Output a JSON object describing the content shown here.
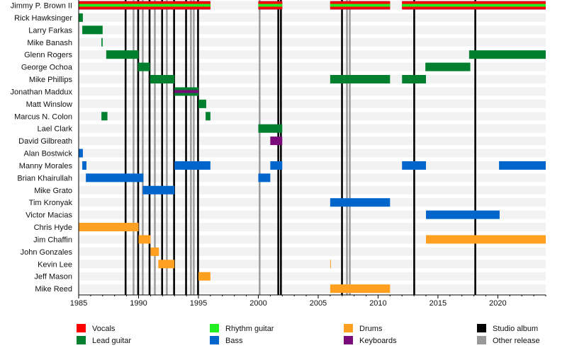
{
  "chart_data": {
    "type": "timeline",
    "xlim": [
      1985,
      2024
    ],
    "x_ticks": [
      1985,
      1990,
      1995,
      2000,
      2005,
      2010,
      2015,
      2020
    ],
    "colors": {
      "Vocals": "#ff0000",
      "Rhythm guitar": "#22ee22",
      "Drums": "#ffa020",
      "Studio album": "#000000",
      "Lead guitar": "#00802f",
      "Bass": "#0066cc",
      "Keyboards": "#7a0a7a",
      "Other release": "#999999"
    },
    "legend": [
      {
        "label": "Vocals",
        "key": "Vocals"
      },
      {
        "label": "Lead guitar",
        "key": "Lead guitar"
      },
      {
        "label": "Rhythm guitar",
        "key": "Rhythm guitar"
      },
      {
        "label": "Bass",
        "key": "Bass"
      },
      {
        "label": "Drums",
        "key": "Drums"
      },
      {
        "label": "Keyboards",
        "key": "Keyboards"
      },
      {
        "label": "Studio album",
        "key": "Studio album"
      },
      {
        "label": "Other release",
        "key": "Other release"
      }
    ],
    "studio_albums": [
      1988.9,
      1989.95,
      1990.9,
      1991.95,
      1992.95,
      1993.95,
      1994.95,
      2001.65,
      2001.87,
      2006.97,
      2013.0,
      2018.1
    ],
    "other_releases": [
      1989.57,
      1990.34,
      1991.35,
      1992.35,
      1994.36,
      1994.6,
      2000.1,
      2007.39,
      2007.63
    ],
    "members": [
      {
        "name": "Jimmy P. Brown II",
        "periods": [
          {
            "role": "Vocals",
            "second": "Rhythm guitar",
            "start": 1985,
            "end": 1996
          },
          {
            "role": "Vocals",
            "second": "Rhythm guitar",
            "start": 2000,
            "end": 2002
          },
          {
            "role": "Vocals",
            "second": "Rhythm guitar",
            "start": 2006,
            "end": 2011
          },
          {
            "role": "Vocals",
            "second": "Rhythm guitar",
            "start": 2012,
            "end": 2024
          }
        ]
      },
      {
        "name": "Rick Hawksinger",
        "periods": [
          {
            "role": "Lead guitar",
            "start": 1985,
            "end": 1985.35
          }
        ]
      },
      {
        "name": "Larry Farkas",
        "periods": [
          {
            "role": "Lead guitar",
            "start": 1985.3,
            "end": 1987
          }
        ]
      },
      {
        "name": "Mike Banash",
        "periods": [
          {
            "role": "Lead guitar",
            "start": 1986.9,
            "end": 1987
          }
        ]
      },
      {
        "name": "Glenn Rogers",
        "periods": [
          {
            "role": "Lead guitar",
            "start": 1987.3,
            "end": 1990
          },
          {
            "role": "Lead guitar",
            "start": 2017.6,
            "end": 2024
          }
        ]
      },
      {
        "name": "George Ochoa",
        "periods": [
          {
            "role": "Lead guitar",
            "start": 1989.95,
            "end": 1990.95
          },
          {
            "role": "Lead guitar",
            "start": 2013.95,
            "end": 2017.7
          }
        ]
      },
      {
        "name": "Mike Phillips",
        "periods": [
          {
            "role": "Lead guitar",
            "start": 1990.95,
            "end": 1993
          },
          {
            "role": "Lead guitar",
            "start": 2006,
            "end": 2011
          },
          {
            "role": "Lead guitar",
            "start": 2012,
            "end": 2014
          }
        ]
      },
      {
        "name": "Jonathan Maddux",
        "periods": [
          {
            "role": "Lead guitar",
            "second": "Keyboards",
            "start": 1993,
            "end": 1995
          }
        ]
      },
      {
        "name": "Matt Winslow",
        "periods": [
          {
            "role": "Lead guitar",
            "start": 1995,
            "end": 1995.65
          }
        ]
      },
      {
        "name": "Marcus N. Colon",
        "periods": [
          {
            "role": "Lead guitar",
            "start": 1986.9,
            "end": 1987.4
          },
          {
            "role": "Lead guitar",
            "start": 1995.6,
            "end": 1996
          }
        ]
      },
      {
        "name": "Lael Clark",
        "periods": [
          {
            "role": "Lead guitar",
            "start": 2000,
            "end": 2002
          }
        ]
      },
      {
        "name": "David Gilbreath",
        "periods": [
          {
            "role": "Keyboards",
            "start": 2001,
            "end": 2002
          }
        ]
      },
      {
        "name": "Alan Bostwick",
        "periods": [
          {
            "role": "Bass",
            "start": 1985,
            "end": 1985.35
          }
        ]
      },
      {
        "name": "Manny Morales",
        "periods": [
          {
            "role": "Bass",
            "start": 1985.3,
            "end": 1985.65
          },
          {
            "role": "Bass",
            "start": 1993,
            "end": 1996
          },
          {
            "role": "Bass",
            "start": 2001,
            "end": 2002
          },
          {
            "role": "Bass",
            "start": 2012,
            "end": 2014
          },
          {
            "role": "Bass",
            "start": 2020.1,
            "end": 2024
          }
        ]
      },
      {
        "name": "Brian Khairullah",
        "periods": [
          {
            "role": "Bass",
            "start": 1985.6,
            "end": 1990.4
          },
          {
            "role": "Bass",
            "start": 2000,
            "end": 2001
          }
        ]
      },
      {
        "name": "Mike Grato",
        "periods": [
          {
            "role": "Bass",
            "start": 1990.35,
            "end": 1993
          }
        ]
      },
      {
        "name": "Tim Kronyak",
        "periods": [
          {
            "role": "Bass",
            "start": 2006,
            "end": 2011
          }
        ]
      },
      {
        "name": "Victor Macias",
        "periods": [
          {
            "role": "Bass",
            "start": 2014,
            "end": 2020.15
          }
        ]
      },
      {
        "name": "Chris Hyde",
        "periods": [
          {
            "role": "Drums",
            "start": 1985,
            "end": 1990
          }
        ]
      },
      {
        "name": "Jim Chaffin",
        "periods": [
          {
            "role": "Drums",
            "start": 1990,
            "end": 1991
          },
          {
            "role": "Drums",
            "start": 2014,
            "end": 2024
          }
        ]
      },
      {
        "name": "John Gonzales",
        "periods": [
          {
            "role": "Drums",
            "start": 1991,
            "end": 1991.7
          }
        ]
      },
      {
        "name": "Kevin Lee",
        "periods": [
          {
            "role": "Drums",
            "start": 1991.65,
            "end": 1993
          },
          {
            "role": "Drums",
            "start": 2006,
            "end": 2006.06
          }
        ]
      },
      {
        "name": "Jeff Mason",
        "periods": [
          {
            "role": "Drums",
            "start": 1995,
            "end": 1996
          }
        ]
      },
      {
        "name": "Mike Reed",
        "periods": [
          {
            "role": "Drums",
            "start": 2006,
            "end": 2011
          }
        ]
      }
    ]
  }
}
